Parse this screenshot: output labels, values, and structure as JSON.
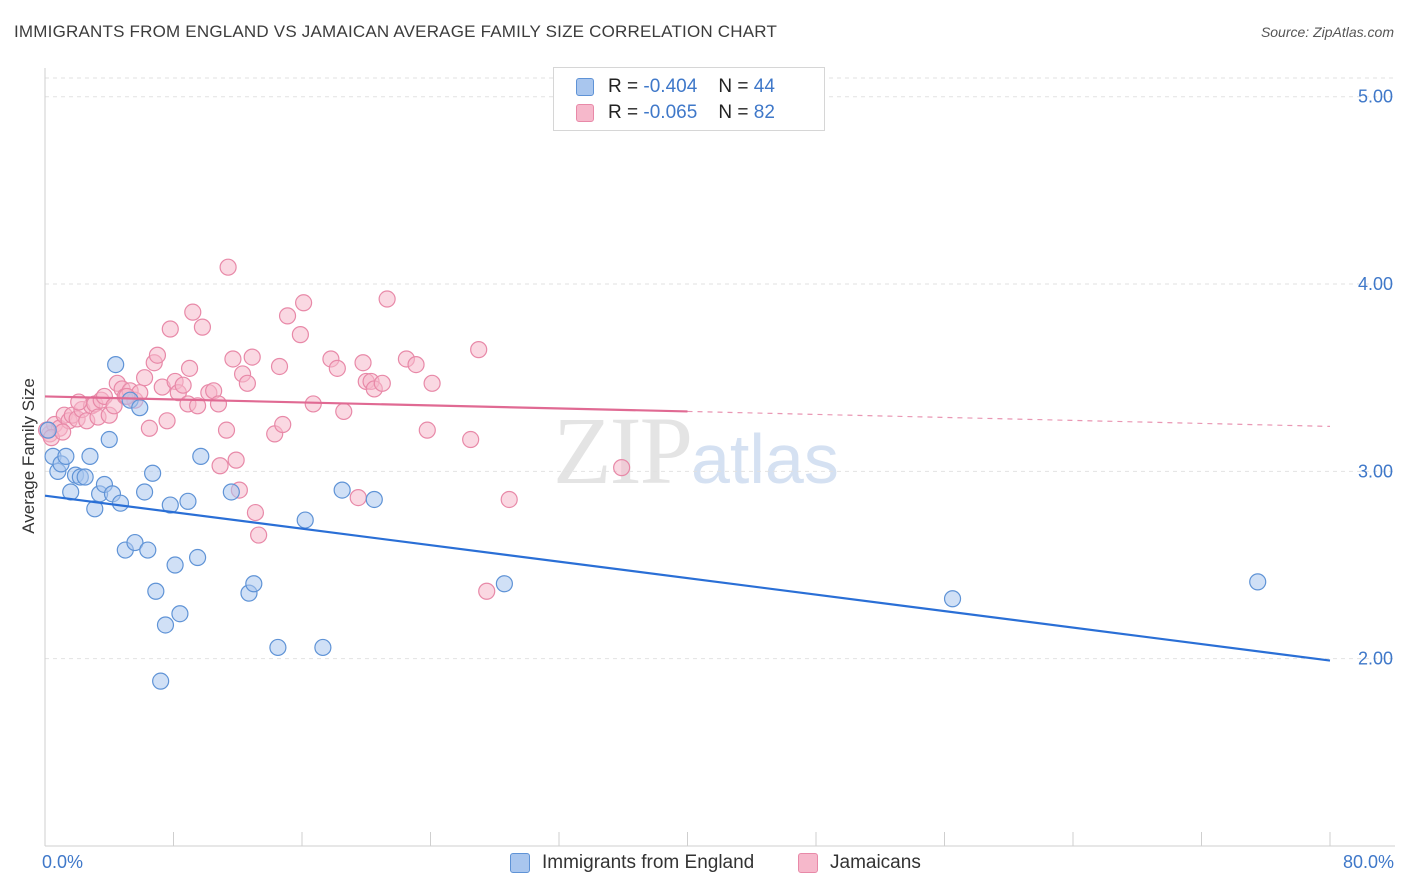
{
  "header": {
    "title": "IMMIGRANTS FROM ENGLAND VS JAMAICAN AVERAGE FAMILY SIZE CORRELATION CHART",
    "source": "Source: ZipAtlas.com"
  },
  "legend": {
    "rows": [
      {
        "r_label": "R =",
        "r_value": "-0.404",
        "n_label": "N =",
        "n_value": "44"
      },
      {
        "r_label": "R =",
        "r_value": "-0.065",
        "n_label": "N =",
        "n_value": "82"
      }
    ]
  },
  "watermark": {
    "zip": "ZIP",
    "atlas": "atlas"
  },
  "colors": {
    "england_fill": "#a9c6ee",
    "england_stroke": "#5f93d6",
    "england_line": "#2a6fd6",
    "jamaican_fill": "#f6b8cb",
    "jamaican_stroke": "#e889a8",
    "jamaican_line": "#e06a93"
  },
  "chart_data": {
    "type": "scatter",
    "title": "IMMIGRANTS FROM ENGLAND VS JAMAICAN AVERAGE FAMILY SIZE CORRELATION CHART",
    "xlabel": "",
    "ylabel": "Average Family Size",
    "xlim": [
      0,
      80
    ],
    "ylim": [
      1.0,
      5.1
    ],
    "x_tick_labels": [
      "0.0%",
      "80.0%"
    ],
    "y_ticks": [
      2.0,
      3.0,
      4.0,
      5.0
    ],
    "y_tick_labels": [
      "2.00",
      "3.00",
      "4.00",
      "5.00"
    ],
    "grid": true,
    "legend_position": "bottom",
    "series": [
      {
        "name": "Immigrants from England",
        "points": [
          [
            0.2,
            3.22
          ],
          [
            0.5,
            3.08
          ],
          [
            0.8,
            3.0
          ],
          [
            1.0,
            3.04
          ],
          [
            1.3,
            3.08
          ],
          [
            1.6,
            2.89
          ],
          [
            1.9,
            2.98
          ],
          [
            2.2,
            2.97
          ],
          [
            2.5,
            2.97
          ],
          [
            2.8,
            3.08
          ],
          [
            3.1,
            2.8
          ],
          [
            3.4,
            2.88
          ],
          [
            3.7,
            2.93
          ],
          [
            4.0,
            3.17
          ],
          [
            4.2,
            2.88
          ],
          [
            4.4,
            3.57
          ],
          [
            4.7,
            2.83
          ],
          [
            5.0,
            2.58
          ],
          [
            5.3,
            3.38
          ],
          [
            5.6,
            2.62
          ],
          [
            5.9,
            3.34
          ],
          [
            6.2,
            2.89
          ],
          [
            6.4,
            2.58
          ],
          [
            6.7,
            2.99
          ],
          [
            6.9,
            2.36
          ],
          [
            7.2,
            1.88
          ],
          [
            7.5,
            2.18
          ],
          [
            7.8,
            2.82
          ],
          [
            8.1,
            2.5
          ],
          [
            8.4,
            2.24
          ],
          [
            8.9,
            2.84
          ],
          [
            9.5,
            2.54
          ],
          [
            9.7,
            3.08
          ],
          [
            11.6,
            2.89
          ],
          [
            12.7,
            2.35
          ],
          [
            13.0,
            2.4
          ],
          [
            14.5,
            2.06
          ],
          [
            16.2,
            2.74
          ],
          [
            17.3,
            2.06
          ],
          [
            18.5,
            2.9
          ],
          [
            20.5,
            2.85
          ],
          [
            28.6,
            2.4
          ],
          [
            56.5,
            2.32
          ],
          [
            75.5,
            2.41
          ]
        ],
        "trend": {
          "x": [
            0,
            80
          ],
          "y": [
            2.87,
            1.99
          ]
        }
      },
      {
        "name": "Jamaicans",
        "points": [
          [
            0.3,
            3.2
          ],
          [
            0.6,
            3.25
          ],
          [
            0.9,
            3.23
          ],
          [
            1.2,
            3.3
          ],
          [
            1.5,
            3.27
          ],
          [
            1.7,
            3.3
          ],
          [
            2.0,
            3.28
          ],
          [
            2.3,
            3.33
          ],
          [
            2.6,
            3.27
          ],
          [
            2.9,
            3.35
          ],
          [
            3.1,
            3.36
          ],
          [
            3.3,
            3.29
          ],
          [
            3.5,
            3.38
          ],
          [
            3.7,
            3.4
          ],
          [
            4.0,
            3.3
          ],
          [
            4.3,
            3.35
          ],
          [
            4.5,
            3.47
          ],
          [
            4.8,
            3.44
          ],
          [
            5.0,
            3.4
          ],
          [
            5.3,
            3.43
          ],
          [
            5.6,
            3.38
          ],
          [
            5.9,
            3.42
          ],
          [
            6.2,
            3.5
          ],
          [
            6.5,
            3.23
          ],
          [
            6.8,
            3.58
          ],
          [
            7.0,
            3.62
          ],
          [
            7.3,
            3.45
          ],
          [
            7.6,
            3.27
          ],
          [
            7.8,
            3.76
          ],
          [
            8.1,
            3.48
          ],
          [
            8.3,
            3.42
          ],
          [
            8.6,
            3.46
          ],
          [
            8.9,
            3.36
          ],
          [
            9.0,
            3.55
          ],
          [
            9.2,
            3.85
          ],
          [
            9.5,
            3.35
          ],
          [
            9.8,
            3.77
          ],
          [
            10.2,
            3.42
          ],
          [
            10.5,
            3.43
          ],
          [
            10.8,
            3.36
          ],
          [
            10.9,
            3.03
          ],
          [
            11.3,
            3.22
          ],
          [
            11.4,
            4.09
          ],
          [
            11.7,
            3.6
          ],
          [
            11.9,
            3.06
          ],
          [
            12.1,
            2.9
          ],
          [
            12.3,
            3.52
          ],
          [
            12.6,
            3.47
          ],
          [
            12.9,
            3.61
          ],
          [
            13.1,
            2.78
          ],
          [
            13.3,
            2.66
          ],
          [
            14.3,
            3.2
          ],
          [
            14.6,
            3.56
          ],
          [
            14.8,
            3.25
          ],
          [
            15.1,
            3.83
          ],
          [
            15.9,
            3.73
          ],
          [
            16.1,
            3.9
          ],
          [
            16.7,
            3.36
          ],
          [
            17.8,
            3.6
          ],
          [
            18.2,
            3.55
          ],
          [
            18.6,
            3.32
          ],
          [
            19.5,
            2.86
          ],
          [
            19.8,
            3.58
          ],
          [
            20.0,
            3.48
          ],
          [
            20.3,
            3.48
          ],
          [
            20.5,
            3.44
          ],
          [
            21.0,
            3.47
          ],
          [
            21.3,
            3.92
          ],
          [
            22.5,
            3.6
          ],
          [
            23.1,
            3.57
          ],
          [
            23.8,
            3.22
          ],
          [
            24.1,
            3.47
          ],
          [
            26.5,
            3.17
          ],
          [
            27.0,
            3.65
          ],
          [
            27.5,
            2.36
          ],
          [
            28.9,
            2.85
          ],
          [
            35.9,
            3.02
          ],
          [
            0.1,
            3.22
          ],
          [
            0.4,
            3.18
          ],
          [
            1.1,
            3.21
          ],
          [
            2.1,
            3.37
          ],
          [
            5.1,
            3.4
          ]
        ],
        "trend": {
          "x": [
            0,
            40
          ],
          "y": [
            3.4,
            3.32
          ]
        },
        "trend_extension": {
          "x": [
            40,
            80
          ],
          "y": [
            3.32,
            3.24
          ]
        }
      }
    ]
  },
  "bottom_legend": {
    "england_label": "Immigrants from England",
    "jamaican_label": "Jamaicans"
  }
}
